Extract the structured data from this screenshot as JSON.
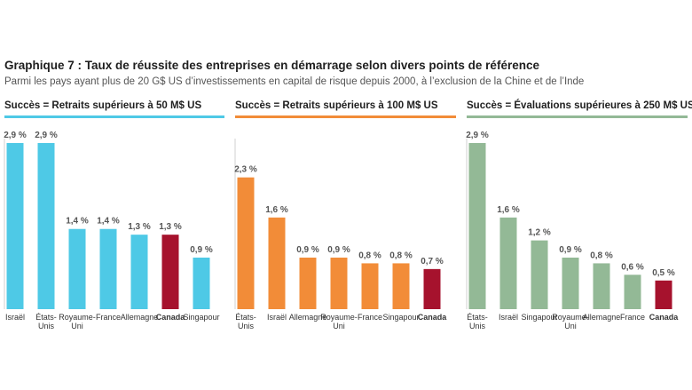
{
  "title": "Graphique 7 : Taux de réussite des entreprises en démarrage selon divers points de référence",
  "subtitle": "Parmi les pays ayant plus de 20 G$ US d’investissements en capital de risque depuis 2000, à l’exclusion de la Chine et de l’Inde",
  "colors": {
    "highlight": "#a6122d",
    "highlight_text": "#a6122d"
  },
  "chart_data": [
    {
      "type": "bar",
      "title": "Succès = Retraits supérieurs à 50 M$ US",
      "color": "#4ec9e6",
      "categories": [
        [
          "Israël"
        ],
        [
          "États-",
          "Unis"
        ],
        [
          "Royaume-",
          "Uni"
        ],
        [
          "France"
        ],
        [
          "Allemagne"
        ],
        [
          "Canada"
        ],
        [
          "Singapour"
        ]
      ],
      "values": [
        2.9,
        2.9,
        1.4,
        1.4,
        1.3,
        1.3,
        0.9
      ],
      "labels": [
        "2,9 %",
        "2,9 %",
        "1,4 %",
        "1,4 %",
        "1,3 %",
        "1,3 %",
        "0,9 %"
      ],
      "highlight_index": 5,
      "ylim": [
        0,
        2.9
      ]
    },
    {
      "type": "bar",
      "title": "Succès = Retraits supérieurs à 100 M$ US",
      "color": "#f28c38",
      "categories": [
        [
          "États-",
          "Unis"
        ],
        [
          "Israël"
        ],
        [
          "Allemagne"
        ],
        [
          "Royaume-",
          "Uni"
        ],
        [
          "France"
        ],
        [
          "Singapour"
        ],
        [
          "Canada"
        ]
      ],
      "values": [
        2.3,
        1.6,
        0.9,
        0.9,
        0.8,
        0.8,
        0.7
      ],
      "labels": [
        "2,3 %",
        "1,6 %",
        "0,9 %",
        "0,9 %",
        "0,8 %",
        "0,8 %",
        "0,7 %"
      ],
      "highlight_index": 6,
      "ylim": [
        0,
        2.9
      ]
    },
    {
      "type": "bar",
      "title": "Succès = Évaluations supérieures à 250 M$ US",
      "color": "#93b996",
      "categories": [
        [
          "États-",
          "Unis"
        ],
        [
          "Israël"
        ],
        [
          "Singapour"
        ],
        [
          "Royaume-",
          "Uni"
        ],
        [
          "Allemagne"
        ],
        [
          "France"
        ],
        [
          "Canada"
        ]
      ],
      "values": [
        2.9,
        1.6,
        1.2,
        0.9,
        0.8,
        0.6,
        0.5
      ],
      "labels": [
        "2,9 %",
        "1,6 %",
        "1,2 %",
        "0,9 %",
        "0,8 %",
        "0,6 %",
        "0,5 %"
      ],
      "highlight_index": 6,
      "ylim": [
        0,
        2.9
      ]
    }
  ]
}
